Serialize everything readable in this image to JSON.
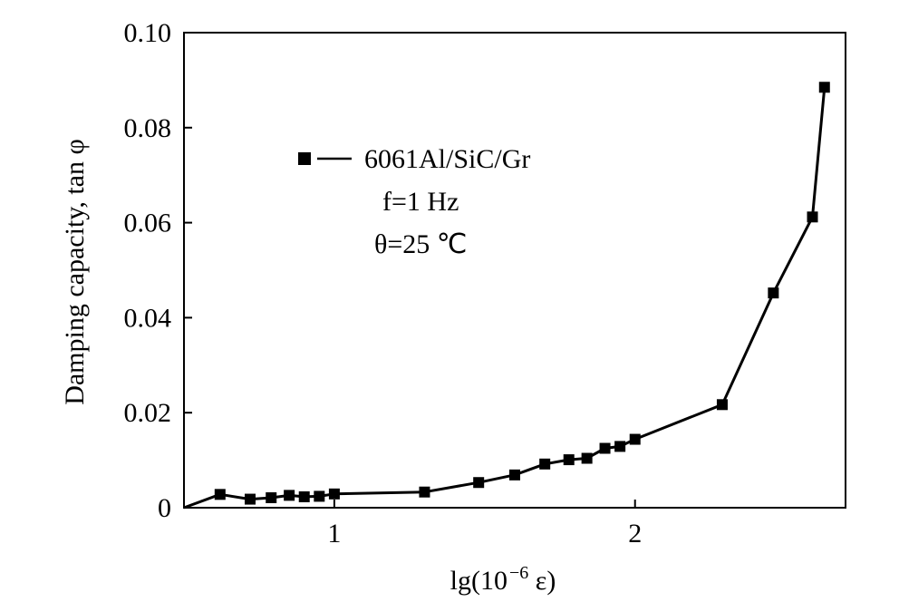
{
  "chart_data": {
    "type": "line",
    "xlabel_prefix": "lg(10",
    "xlabel_exponent": "−6",
    "xlabel_suffix": " ε)",
    "ylabel": "Damping capacity, tan φ",
    "xlim": [
      0.5,
      2.7
    ],
    "ylim": [
      0,
      0.1
    ],
    "x_ticks": [
      1,
      2
    ],
    "x_tick_labels": [
      "1",
      "2"
    ],
    "y_ticks": [
      0,
      0.02,
      0.04,
      0.06,
      0.08,
      0.1
    ],
    "y_tick_labels": [
      "0",
      "0.02",
      "0.04",
      "0.06",
      "0.08",
      "0.10"
    ],
    "grid": false,
    "legend_position": "upper-left",
    "legend_lines": {
      "material": "6061Al/SiC/Gr",
      "frequency": "f=1 Hz",
      "temperature": "θ=25 ℃"
    },
    "series": [
      {
        "name": "6061Al/SiC/Gr",
        "marker": "square",
        "color": "#000000",
        "x": [
          0.5,
          0.62,
          0.72,
          0.79,
          0.85,
          0.9,
          0.95,
          1.0,
          1.3,
          1.48,
          1.6,
          1.7,
          1.78,
          1.84,
          1.9,
          1.95,
          2.0,
          2.29,
          2.46,
          2.59,
          2.63
        ],
        "y": [
          0.0,
          0.0028,
          0.0018,
          0.0021,
          0.0026,
          0.0023,
          0.0024,
          0.0029,
          0.0033,
          0.0053,
          0.0069,
          0.0092,
          0.0101,
          0.0104,
          0.0125,
          0.0129,
          0.0144,
          0.0217,
          0.0452,
          0.0612,
          0.0885
        ],
        "marked": [
          false,
          true,
          true,
          true,
          true,
          true,
          true,
          true,
          true,
          true,
          true,
          true,
          true,
          true,
          true,
          true,
          true,
          true,
          true,
          true,
          true
        ]
      }
    ]
  }
}
